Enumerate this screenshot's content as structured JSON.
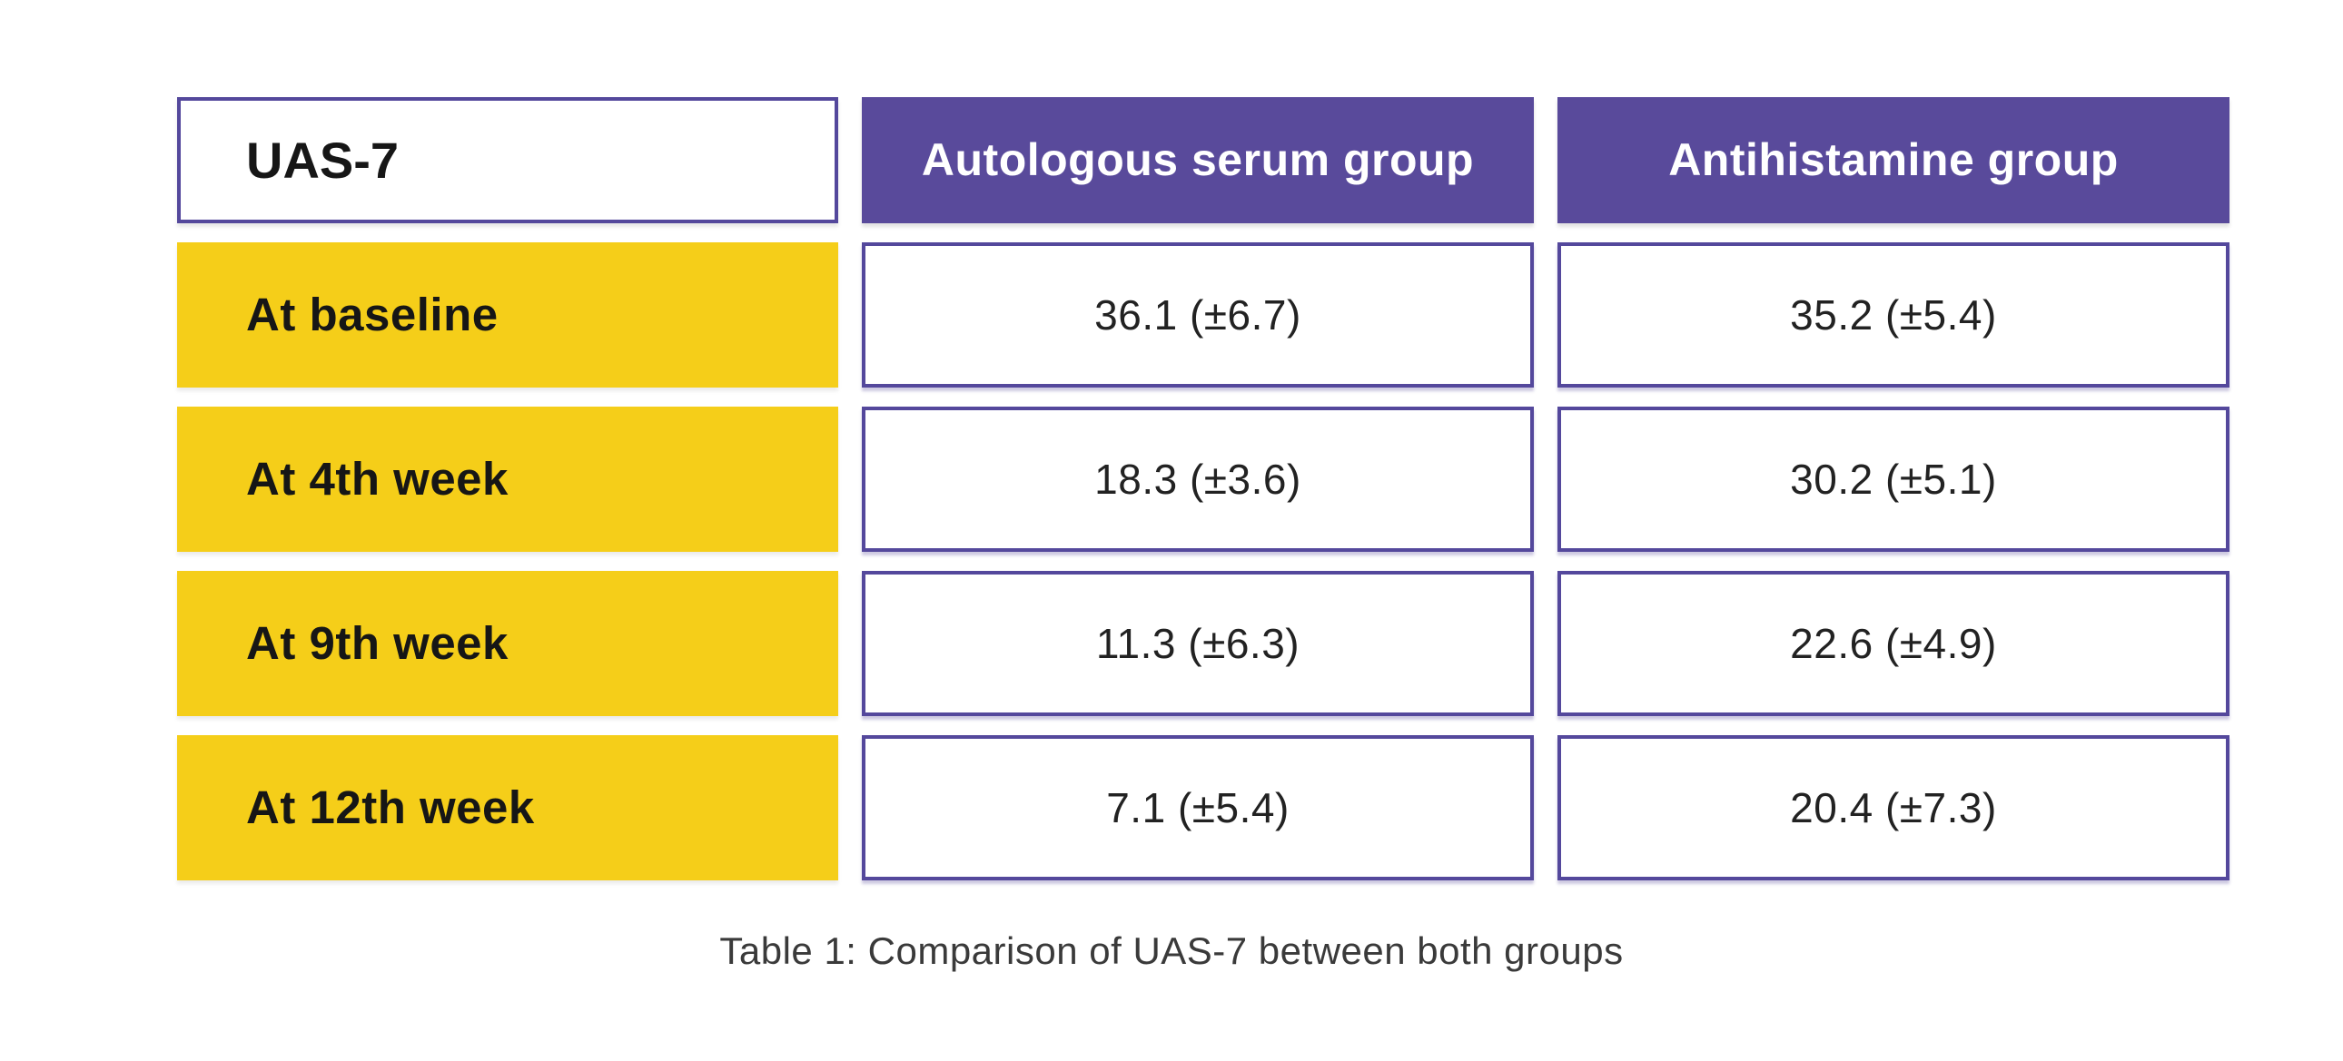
{
  "table": {
    "header": {
      "corner_label": "UAS-7",
      "columns": [
        "Autologous serum group",
        "Antihistamine group"
      ]
    },
    "rows": [
      {
        "label": "At baseline",
        "autologous": "36.1 (±6.7)",
        "antihistamine": "35.2 (±5.4)"
      },
      {
        "label": "At 4th week",
        "autologous": "18.3 (±3.6)",
        "antihistamine": "30.2 (±5.1)"
      },
      {
        "label": "At 9th week",
        "autologous": "11.3 (±6.3)",
        "antihistamine": "22.6 (±4.9)"
      },
      {
        "label": "At 12th week",
        "autologous": "7.1 (±5.4)",
        "antihistamine": "20.4 (±7.3)"
      }
    ],
    "caption": "Table 1: Comparison of UAS-7 between both groups"
  },
  "chart_data": {
    "type": "table",
    "title": "Table 1: Comparison of UAS-7 between both groups",
    "row_header": "UAS-7",
    "categories": [
      "At baseline",
      "At 4th week",
      "At 9th week",
      "At 12th week"
    ],
    "series": [
      {
        "name": "Autologous serum group",
        "values": [
          36.1,
          18.3,
          11.3,
          7.1
        ],
        "sd": [
          6.7,
          3.6,
          6.3,
          5.4
        ]
      },
      {
        "name": "Antihistamine group",
        "values": [
          35.2,
          30.2,
          22.6,
          20.4
        ],
        "sd": [
          5.4,
          5.1,
          4.9,
          7.3
        ]
      }
    ],
    "value_format": "mean (±sd)"
  },
  "colors": {
    "purple": "#594a9b",
    "purple_border": "#54489c",
    "yellow": "#f5ce19",
    "text_dark": "#161616",
    "caption_text": "#3a3a3a",
    "background": "#ffffff"
  }
}
